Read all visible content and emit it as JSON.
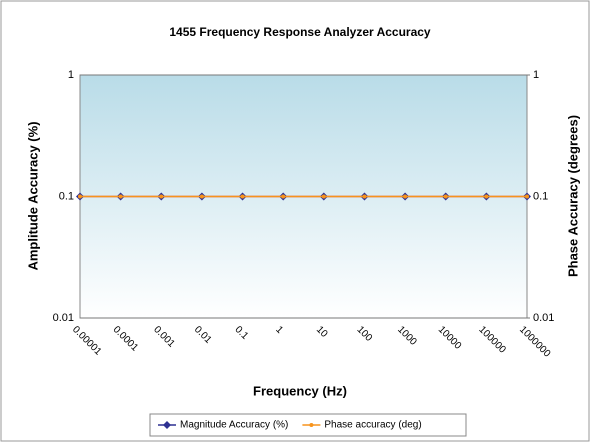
{
  "chart_data": {
    "type": "line",
    "title": "1455 Frequency Response Analyzer Accuracy",
    "x_label": "Frequency (Hz)",
    "y_label": "Amplitude Accuracy (%)",
    "y2_label": "Phase Accuracy (degrees)",
    "categories": [
      "0.00001",
      "0.0001",
      "0.001",
      "0.01",
      "0.1",
      "1",
      "10",
      "100",
      "1000",
      "10000",
      "100000",
      "1000000"
    ],
    "series": [
      {
        "name": "Magnitude Accuracy (%)",
        "color": "#2e3192",
        "marker": "diamond",
        "values": [
          0.1,
          0.1,
          0.1,
          0.1,
          0.1,
          0.1,
          0.1,
          0.1,
          0.1,
          0.1,
          0.1,
          0.1
        ]
      },
      {
        "name": "Phase accuracy (deg)",
        "color": "#f7941d",
        "marker": "circle",
        "axis": "y2",
        "values": [
          0.1,
          0.1,
          0.1,
          0.1,
          0.1,
          0.1,
          0.1,
          0.1,
          0.1,
          0.1,
          0.1,
          0.1
        ]
      }
    ],
    "yscale": "log",
    "ylim": [
      0.01,
      1
    ],
    "yticks": [
      0.01,
      0.1,
      1
    ],
    "y2scale": "log",
    "y2lim": [
      0.01,
      1
    ],
    "y2ticks": [
      0.01,
      0.1,
      1
    ],
    "grid": true,
    "legend": "bottom"
  }
}
